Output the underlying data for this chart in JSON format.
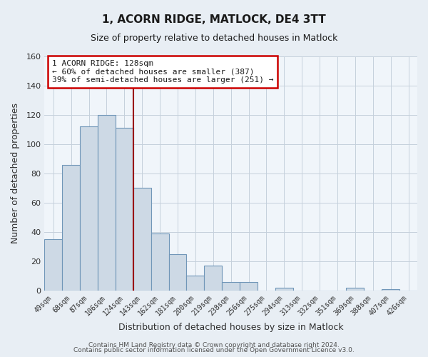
{
  "title": "1, ACORN RIDGE, MATLOCK, DE4 3TT",
  "subtitle": "Size of property relative to detached houses in Matlock",
  "xlabel": "Distribution of detached houses by size in Matlock",
  "ylabel": "Number of detached properties",
  "categories": [
    "49sqm",
    "68sqm",
    "87sqm",
    "106sqm",
    "124sqm",
    "143sqm",
    "162sqm",
    "181sqm",
    "200sqm",
    "219sqm",
    "238sqm",
    "256sqm",
    "275sqm",
    "294sqm",
    "313sqm",
    "332sqm",
    "351sqm",
    "369sqm",
    "388sqm",
    "407sqm",
    "426sqm"
  ],
  "values": [
    35,
    86,
    112,
    120,
    111,
    70,
    39,
    25,
    10,
    17,
    6,
    6,
    0,
    2,
    0,
    0,
    0,
    2,
    0,
    1,
    0
  ],
  "bar_color": "#cdd9e5",
  "bar_edge_color": "#7096b8",
  "marker_color": "#990000",
  "marker_index": 4,
  "ylim": [
    0,
    160
  ],
  "yticks": [
    0,
    20,
    40,
    60,
    80,
    100,
    120,
    140,
    160
  ],
  "annotation_title": "1 ACORN RIDGE: 128sqm",
  "annotation_line1": "← 60% of detached houses are smaller (387)",
  "annotation_line2": "39% of semi-detached houses are larger (251) →",
  "annotation_box_facecolor": "#ffffff",
  "annotation_box_edgecolor": "#cc0000",
  "footer_line1": "Contains HM Land Registry data © Crown copyright and database right 2024.",
  "footer_line2": "Contains public sector information licensed under the Open Government Licence v3.0.",
  "fig_facecolor": "#e8eef4",
  "plot_facecolor": "#f0f5fa",
  "grid_color": "#c5d0dc"
}
